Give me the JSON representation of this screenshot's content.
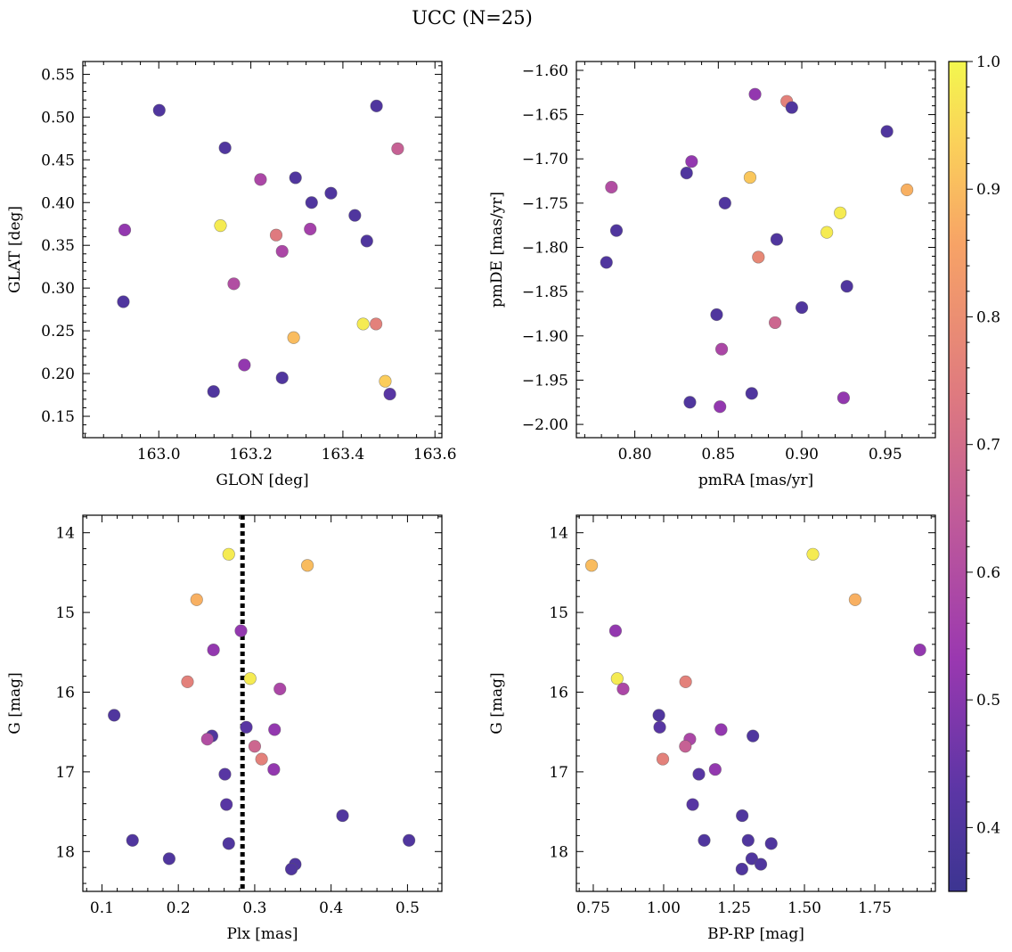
{
  "title": "UCC (N=25)",
  "colorbar": {
    "range": [
      0.35,
      1.0
    ],
    "ticks": [
      0.4,
      0.5,
      0.6,
      0.7,
      0.8,
      0.9,
      1.0
    ],
    "tick_labels": [
      "0.4",
      "0.5",
      "0.6",
      "0.7",
      "0.8",
      "0.9",
      "1.0"
    ],
    "colormap": "plasma"
  },
  "chart_data": [
    {
      "type": "scatter",
      "xlabel": "GLON [deg]",
      "ylabel": "GLAT [deg]",
      "xlim": [
        162.835,
        163.615
      ],
      "ylim": [
        0.125,
        0.565
      ],
      "xticks": [
        163.0,
        163.2,
        163.4,
        163.6
      ],
      "xtick_labels": [
        "163.0",
        "163.2",
        "163.4",
        "163.6"
      ],
      "yticks": [
        0.15,
        0.2,
        0.25,
        0.3,
        0.35,
        0.4,
        0.45,
        0.5,
        0.55
      ],
      "ytick_labels": [
        "0.15",
        "0.20",
        "0.25",
        "0.30",
        "0.35",
        "0.40",
        "0.45",
        "0.50",
        "0.55"
      ],
      "points": [
        {
          "x": 163.001,
          "y": 0.508,
          "c": 0.4
        },
        {
          "x": 163.144,
          "y": 0.464,
          "c": 0.4
        },
        {
          "x": 163.473,
          "y": 0.513,
          "c": 0.4
        },
        {
          "x": 163.519,
          "y": 0.463,
          "c": 0.66
        },
        {
          "x": 163.297,
          "y": 0.429,
          "c": 0.4
        },
        {
          "x": 163.221,
          "y": 0.427,
          "c": 0.58
        },
        {
          "x": 163.374,
          "y": 0.411,
          "c": 0.4
        },
        {
          "x": 163.332,
          "y": 0.4,
          "c": 0.4
        },
        {
          "x": 163.426,
          "y": 0.385,
          "c": 0.4
        },
        {
          "x": 162.926,
          "y": 0.368,
          "c": 0.52
        },
        {
          "x": 163.134,
          "y": 0.373,
          "c": 0.98
        },
        {
          "x": 163.329,
          "y": 0.369,
          "c": 0.56
        },
        {
          "x": 163.255,
          "y": 0.362,
          "c": 0.74
        },
        {
          "x": 163.452,
          "y": 0.355,
          "c": 0.4
        },
        {
          "x": 163.268,
          "y": 0.343,
          "c": 0.58
        },
        {
          "x": 163.163,
          "y": 0.305,
          "c": 0.6
        },
        {
          "x": 162.923,
          "y": 0.284,
          "c": 0.4
        },
        {
          "x": 163.444,
          "y": 0.258,
          "c": 0.98
        },
        {
          "x": 163.472,
          "y": 0.258,
          "c": 0.76
        },
        {
          "x": 163.293,
          "y": 0.242,
          "c": 0.9
        },
        {
          "x": 163.186,
          "y": 0.21,
          "c": 0.52
        },
        {
          "x": 163.268,
          "y": 0.195,
          "c": 0.4
        },
        {
          "x": 163.492,
          "y": 0.191,
          "c": 0.93
        },
        {
          "x": 163.119,
          "y": 0.179,
          "c": 0.4
        },
        {
          "x": 163.502,
          "y": 0.176,
          "c": 0.42
        }
      ]
    },
    {
      "type": "scatter",
      "xlabel": "pmRA [mas/yr]",
      "ylabel": "pmDE [mas/yr]",
      "xlim": [
        0.765,
        0.98
      ],
      "ylim": [
        -2.015,
        -1.59
      ],
      "xticks": [
        0.8,
        0.85,
        0.9,
        0.95
      ],
      "xtick_labels": [
        "0.80",
        "0.85",
        "0.90",
        "0.95"
      ],
      "yticks": [
        -2.0,
        -1.95,
        -1.9,
        -1.85,
        -1.8,
        -1.75,
        -1.7,
        -1.65,
        -1.6
      ],
      "ytick_labels": [
        "−2.00",
        "−1.95",
        "−1.90",
        "−1.85",
        "−1.80",
        "−1.75",
        "−1.70",
        "−1.65",
        "−1.60"
      ],
      "points": [
        {
          "x": 0.872,
          "y": -1.627,
          "c": 0.52
        },
        {
          "x": 0.891,
          "y": -1.635,
          "c": 0.76
        },
        {
          "x": 0.894,
          "y": -1.642,
          "c": 0.4
        },
        {
          "x": 0.951,
          "y": -1.669,
          "c": 0.4
        },
        {
          "x": 0.834,
          "y": -1.703,
          "c": 0.52
        },
        {
          "x": 0.831,
          "y": -1.716,
          "c": 0.4
        },
        {
          "x": 0.869,
          "y": -1.721,
          "c": 0.92
        },
        {
          "x": 0.786,
          "y": -1.732,
          "c": 0.6
        },
        {
          "x": 0.963,
          "y": -1.735,
          "c": 0.88
        },
        {
          "x": 0.854,
          "y": -1.75,
          "c": 0.4
        },
        {
          "x": 0.923,
          "y": -1.761,
          "c": 0.98
        },
        {
          "x": 0.789,
          "y": -1.781,
          "c": 0.4
        },
        {
          "x": 0.915,
          "y": -1.783,
          "c": 0.98
        },
        {
          "x": 0.885,
          "y": -1.791,
          "c": 0.4
        },
        {
          "x": 0.874,
          "y": -1.811,
          "c": 0.78
        },
        {
          "x": 0.783,
          "y": -1.817,
          "c": 0.4
        },
        {
          "x": 0.927,
          "y": -1.844,
          "c": 0.4
        },
        {
          "x": 0.9,
          "y": -1.868,
          "c": 0.4
        },
        {
          "x": 0.849,
          "y": -1.876,
          "c": 0.4
        },
        {
          "x": 0.884,
          "y": -1.885,
          "c": 0.68
        },
        {
          "x": 0.852,
          "y": -1.915,
          "c": 0.58
        },
        {
          "x": 0.87,
          "y": -1.965,
          "c": 0.4
        },
        {
          "x": 0.925,
          "y": -1.97,
          "c": 0.52
        },
        {
          "x": 0.833,
          "y": -1.975,
          "c": 0.4
        },
        {
          "x": 0.851,
          "y": -1.98,
          "c": 0.52
        }
      ]
    },
    {
      "type": "scatter",
      "xlabel": "Plx [mas]",
      "ylabel": "G [mag]",
      "xlim": [
        0.075,
        0.545
      ],
      "ylim": [
        18.5,
        13.78
      ],
      "y_inverted": true,
      "xticks": [
        0.1,
        0.2,
        0.3,
        0.4,
        0.5
      ],
      "xtick_labels": [
        "0.1",
        "0.2",
        "0.3",
        "0.4",
        "0.5"
      ],
      "yticks": [
        14,
        15,
        16,
        17,
        18
      ],
      "ytick_labels": [
        "14",
        "15",
        "16",
        "17",
        "18"
      ],
      "vline": {
        "x": 0.284,
        "style": "dotted",
        "color": "#000000"
      },
      "points": [
        {
          "x": 0.266,
          "y": 14.27,
          "c": 0.98
        },
        {
          "x": 0.369,
          "y": 14.41,
          "c": 0.9
        },
        {
          "x": 0.224,
          "y": 14.84,
          "c": 0.88
        },
        {
          "x": 0.282,
          "y": 15.23,
          "c": 0.52
        },
        {
          "x": 0.246,
          "y": 15.47,
          "c": 0.52
        },
        {
          "x": 0.212,
          "y": 15.87,
          "c": 0.76
        },
        {
          "x": 0.294,
          "y": 15.83,
          "c": 0.98
        },
        {
          "x": 0.333,
          "y": 15.96,
          "c": 0.58
        },
        {
          "x": 0.116,
          "y": 16.29,
          "c": 0.4
        },
        {
          "x": 0.289,
          "y": 16.44,
          "c": 0.42
        },
        {
          "x": 0.326,
          "y": 16.47,
          "c": 0.52
        },
        {
          "x": 0.244,
          "y": 16.55,
          "c": 0.4
        },
        {
          "x": 0.238,
          "y": 16.59,
          "c": 0.6
        },
        {
          "x": 0.3,
          "y": 16.68,
          "c": 0.68
        },
        {
          "x": 0.309,
          "y": 16.84,
          "c": 0.76
        },
        {
          "x": 0.325,
          "y": 16.97,
          "c": 0.52
        },
        {
          "x": 0.261,
          "y": 17.03,
          "c": 0.42
        },
        {
          "x": 0.263,
          "y": 17.41,
          "c": 0.42
        },
        {
          "x": 0.415,
          "y": 17.55,
          "c": 0.4
        },
        {
          "x": 0.14,
          "y": 17.86,
          "c": 0.4
        },
        {
          "x": 0.502,
          "y": 17.86,
          "c": 0.4
        },
        {
          "x": 0.266,
          "y": 17.9,
          "c": 0.4
        },
        {
          "x": 0.188,
          "y": 18.09,
          "c": 0.4
        },
        {
          "x": 0.353,
          "y": 18.16,
          "c": 0.4
        },
        {
          "x": 0.348,
          "y": 18.22,
          "c": 0.4
        }
      ]
    },
    {
      "type": "scatter",
      "xlabel": "BP-RP [mag]",
      "ylabel": "G [mag]",
      "xlim": [
        0.69,
        1.965
      ],
      "ylim": [
        18.5,
        13.78
      ],
      "y_inverted": true,
      "xticks": [
        0.75,
        1.0,
        1.25,
        1.5,
        1.75
      ],
      "xtick_labels": [
        "0.75",
        "1.00",
        "1.25",
        "1.50",
        "1.75"
      ],
      "yticks": [
        14,
        15,
        16,
        17,
        18
      ],
      "ytick_labels": [
        "14",
        "15",
        "16",
        "17",
        "18"
      ],
      "points": [
        {
          "x": 1.53,
          "y": 14.27,
          "c": 0.98
        },
        {
          "x": 0.744,
          "y": 14.41,
          "c": 0.9
        },
        {
          "x": 1.68,
          "y": 14.84,
          "c": 0.88
        },
        {
          "x": 0.829,
          "y": 15.23,
          "c": 0.52
        },
        {
          "x": 1.91,
          "y": 15.47,
          "c": 0.52
        },
        {
          "x": 0.835,
          "y": 15.83,
          "c": 0.98
        },
        {
          "x": 1.078,
          "y": 15.87,
          "c": 0.76
        },
        {
          "x": 0.856,
          "y": 15.96,
          "c": 0.58
        },
        {
          "x": 0.983,
          "y": 16.29,
          "c": 0.4
        },
        {
          "x": 0.986,
          "y": 16.44,
          "c": 0.42
        },
        {
          "x": 1.204,
          "y": 16.47,
          "c": 0.52
        },
        {
          "x": 1.317,
          "y": 16.55,
          "c": 0.4
        },
        {
          "x": 1.093,
          "y": 16.59,
          "c": 0.58
        },
        {
          "x": 1.077,
          "y": 16.68,
          "c": 0.66
        },
        {
          "x": 0.997,
          "y": 16.84,
          "c": 0.76
        },
        {
          "x": 1.183,
          "y": 16.97,
          "c": 0.52
        },
        {
          "x": 1.125,
          "y": 17.03,
          "c": 0.42
        },
        {
          "x": 1.103,
          "y": 17.41,
          "c": 0.42
        },
        {
          "x": 1.279,
          "y": 17.55,
          "c": 0.4
        },
        {
          "x": 1.144,
          "y": 17.86,
          "c": 0.4
        },
        {
          "x": 1.3,
          "y": 17.86,
          "c": 0.4
        },
        {
          "x": 1.382,
          "y": 17.9,
          "c": 0.4
        },
        {
          "x": 1.313,
          "y": 18.09,
          "c": 0.4
        },
        {
          "x": 1.345,
          "y": 18.16,
          "c": 0.4
        },
        {
          "x": 1.278,
          "y": 18.22,
          "c": 0.4
        }
      ]
    }
  ]
}
